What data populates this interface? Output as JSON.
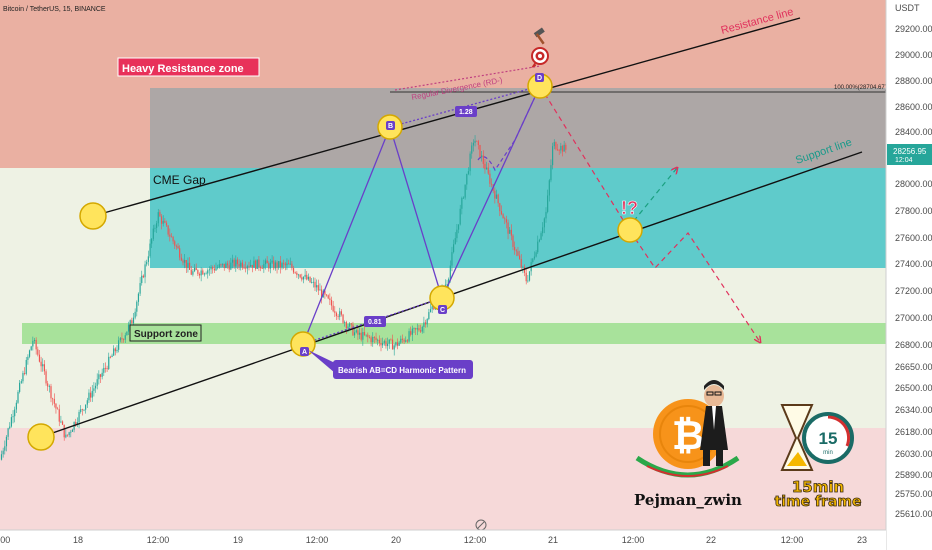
{
  "header": {
    "symbol_text": "Bitcoin / TetherUS, 15, BINANCE"
  },
  "price_axis": {
    "currency": "USDT",
    "ticks": [
      "29200.00",
      "29000.00",
      "28800.00",
      "28600.00",
      "28400.00",
      "28200.00",
      "28000.00",
      "27800.00",
      "27600.00",
      "27400.00",
      "27200.00",
      "27000.00",
      "26800.00",
      "26650.00",
      "26500.00",
      "26340.00",
      "26180.00",
      "26030.00",
      "25890.00",
      "25750.00",
      "25610.00"
    ],
    "current_price": "28256.95",
    "countdown": "12:04"
  },
  "time_axis": {
    "ticks": [
      ":00",
      "18",
      "12:00",
      "19",
      "12:00",
      "20",
      "12:00",
      "21",
      "12:00",
      "22",
      "12:00",
      "23"
    ]
  },
  "annotations": {
    "heavy_resistance_zone": "Heavy Resistance zone",
    "cme_gap": "CME Gap",
    "support_zone": "Support zone",
    "resistance_line": "Resistance line",
    "support_line": "Support line",
    "regular_divergence": "Regular Divergence (RD-)",
    "fib_100": "100.00%(28704.67)",
    "ratio_bc": "1.28",
    "ratio_ab": "0.81",
    "pattern_name": "Bearish AB=CD Harmonic Pattern",
    "question_mark": "!?",
    "point_a": "A",
    "point_b": "B",
    "point_c": "C",
    "point_d": "D"
  },
  "branding": {
    "author": "Pejman_zwin",
    "timeframe_number": "15",
    "timeframe_unit": "min",
    "timeframe_label_1": "15min",
    "timeframe_label_2": "time frame",
    "coin_symbol": "₿"
  },
  "colors": {
    "resistance_zone": "#e8a89a",
    "support_band": "#f1f5e6",
    "lower_zone": "#f7d7d7",
    "cme_gap": "#64cccc",
    "gray_box": "#9e9e9e",
    "support_zone": "#a5e09a",
    "pattern": "#6a3fc8",
    "candle_up": "#26a69a",
    "candle_down": "#ef5350",
    "resistance_label": "#e0315c",
    "support_label": "#1a9a8a",
    "price_badge": "#26a69a"
  },
  "chart_data": {
    "type": "candlestick",
    "title": "Bitcoin / TetherUS, 15, BINANCE",
    "ylim": [
      25550,
      29400
    ],
    "y_scale": "log",
    "zones": [
      {
        "name": "Heavy Resistance zone",
        "from": 28150,
        "to": 29400
      },
      {
        "name": "CME Gap",
        "from": 27390,
        "to": 28150
      },
      {
        "name": "Support zone",
        "from": 26810,
        "to": 26960
      },
      {
        "name": "gray box",
        "from": 28150,
        "to": 28720
      }
    ],
    "price_path": [
      {
        "x": "17 00:00",
        "y": 26030
      },
      {
        "x": "17 05:00",
        "y": 26870
      },
      {
        "x": "17 10:00",
        "y": 26180
      },
      {
        "x": "17 20:00",
        "y": 27000
      },
      {
        "x": "18 00:00",
        "y": 27780
      },
      {
        "x": "18 05:00",
        "y": 27350
      },
      {
        "x": "18 12:00",
        "y": 27420
      },
      {
        "x": "18 20:00",
        "y": 27400
      },
      {
        "x": "19 00:00",
        "y": 27250
      },
      {
        "x": "19 06:00",
        "y": 26910
      },
      {
        "x": "19 12:00",
        "y": 26830
      },
      {
        "x": "19 16:00",
        "y": 26960
      },
      {
        "x": "19 20:00",
        "y": 27300
      },
      {
        "x": "20 00:00",
        "y": 28350
      },
      {
        "x": "20 03:00",
        "y": 27950
      },
      {
        "x": "20 08:00",
        "y": 27290
      },
      {
        "x": "20 11:00",
        "y": 27800
      },
      {
        "x": "20 12:00",
        "y": 28300
      },
      {
        "x": "20 14:00",
        "y": 28257
      }
    ],
    "harmonic_points": [
      {
        "label": "A",
        "x": "19 12:00",
        "y": 26830
      },
      {
        "label": "B",
        "x": "20 00:00",
        "y": 28380
      },
      {
        "label": "C",
        "x": "20 07:00",
        "y": 27240
      },
      {
        "label": "D",
        "x": "21 00:00",
        "y": 28704.67
      }
    ],
    "current_price": 28256.95,
    "legend": "none",
    "grid": false
  }
}
